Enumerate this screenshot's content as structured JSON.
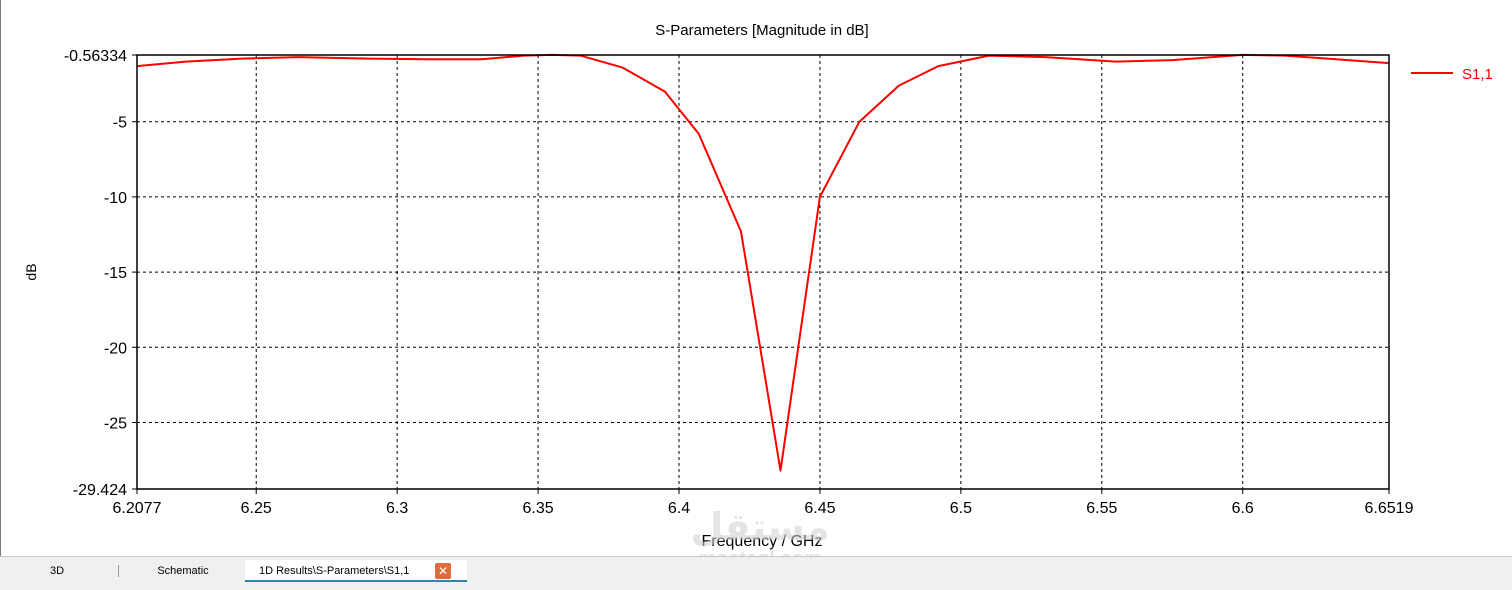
{
  "chart_data": {
    "type": "line",
    "title": "S-Parameters [Magnitude in dB]",
    "xlabel": "Frequency / GHz",
    "ylabel": "dB",
    "xlim": [
      6.2077,
      6.6519
    ],
    "ylim": [
      -29.424,
      -0.56334
    ],
    "grid": true,
    "legend_position": "right",
    "x_ticks": [
      "6.2077",
      "6.25",
      "6.3",
      "6.35",
      "6.4",
      "6.45",
      "6.5",
      "6.55",
      "6.6",
      "6.6519"
    ],
    "y_ticks": [
      "-0.56334",
      "-5",
      "-10",
      "-15",
      "-20",
      "-25",
      "-29.424"
    ],
    "series": [
      {
        "name": "S1,1",
        "color": "#ff0000",
        "x": [
          6.2077,
          6.225,
          6.245,
          6.265,
          6.29,
          6.31,
          6.33,
          6.345,
          6.355,
          6.365,
          6.38,
          6.395,
          6.407,
          6.422,
          6.436,
          6.45,
          6.464,
          6.478,
          6.492,
          6.51,
          6.53,
          6.555,
          6.575,
          6.6,
          6.615,
          6.63,
          6.6519
        ],
        "values": [
          -1.3,
          -1.0,
          -0.8,
          -0.7,
          -0.8,
          -0.85,
          -0.85,
          -0.6,
          -0.56,
          -0.6,
          -1.4,
          -3.0,
          -5.8,
          -12.3,
          -28.2,
          -10.0,
          -5.0,
          -2.6,
          -1.3,
          -0.6,
          -0.7,
          -1.0,
          -0.9,
          -0.56,
          -0.6,
          -0.8,
          -1.1
        ]
      }
    ]
  },
  "tabs": {
    "tab_3d": "3D",
    "tab_schematic": "Schematic",
    "tab_results": "1D Results\\S-Parameters\\S1,1",
    "close_glyph": "✕"
  },
  "watermark": {
    "arabic": "مستقل",
    "latin": "mostaql.com"
  }
}
